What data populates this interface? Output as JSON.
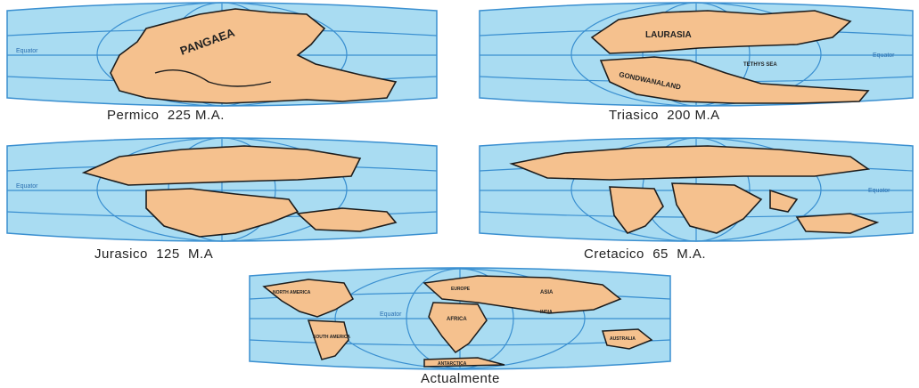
{
  "colors": {
    "ocean": "#a9dcf2",
    "grid": "#3a8fd0",
    "land": "#f5c18e",
    "coast": "#1c1c1c"
  },
  "panels": [
    {
      "caption": "Permico  225 M.A.",
      "land_labels": [
        "PANGAEA"
      ],
      "equator_label": "Equator"
    },
    {
      "caption": "Triasico  200 M.A",
      "land_labels": [
        "LAURASIA",
        "GONDWANALAND",
        "TETHYS SEA"
      ],
      "equator_label": "Equator"
    },
    {
      "caption": "Jurasico  125  M.A",
      "land_labels": [],
      "equator_label": "Equator"
    },
    {
      "caption": "Cretacico  65  M.A.",
      "land_labels": [],
      "equator_label": "Equator"
    },
    {
      "caption": "Actualmente",
      "land_labels": [
        "NORTH AMERICA",
        "EUROPE",
        "ASIA",
        "AFRICA",
        "SOUTH AMERICA",
        "INDIA",
        "AUSTRALIA",
        "ANTARCTICA"
      ],
      "equator_label": "Equator"
    }
  ]
}
